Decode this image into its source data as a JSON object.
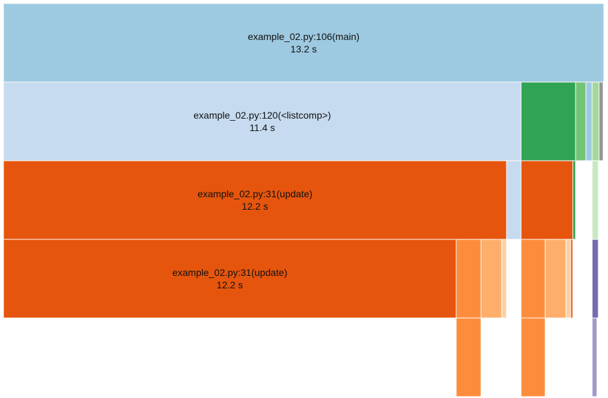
{
  "chart_data": {
    "type": "icicle",
    "levels": [
      [
        {
          "name": "example_02.py:106(main)",
          "time": "13.2 s",
          "color": "#9ecae1"
        }
      ],
      [
        {
          "name": "example_02.py:120(<listcomp>)",
          "time": "11.4 s",
          "color": "#c6dbef"
        },
        {
          "color": "#31a354"
        },
        {
          "color": "#74c476"
        },
        {
          "color": "#9ecae1"
        },
        {
          "color": "#a1d99b"
        },
        {
          "color": "#969696"
        }
      ],
      [
        {
          "name": "example_02.py:31(update)",
          "time": "12.2 s",
          "color": "#e6550d"
        },
        {
          "color": "#c6dbef"
        },
        {
          "color": "#e6550d"
        },
        {
          "color": "#31a354"
        },
        {
          "color": "#c7e9c0"
        }
      ],
      [
        {
          "name": "example_02.py:31(update)",
          "time": "12.2 s",
          "color": "#e6550d"
        },
        {
          "color": "#fd8d3c"
        },
        {
          "color": "#fdae6b"
        },
        {
          "color": "#fdd0a2"
        },
        {
          "color": "#fd8d3c"
        },
        {
          "color": "#fdae6b"
        },
        {
          "color": "#fdd0a2"
        },
        {
          "color": "#e6550d"
        },
        {
          "color": "#756bb1"
        }
      ],
      [
        {
          "color": "#fd8d3c"
        },
        {
          "color": "#fd8d3c"
        },
        {
          "color": "#9e9ac8"
        }
      ]
    ]
  }
}
